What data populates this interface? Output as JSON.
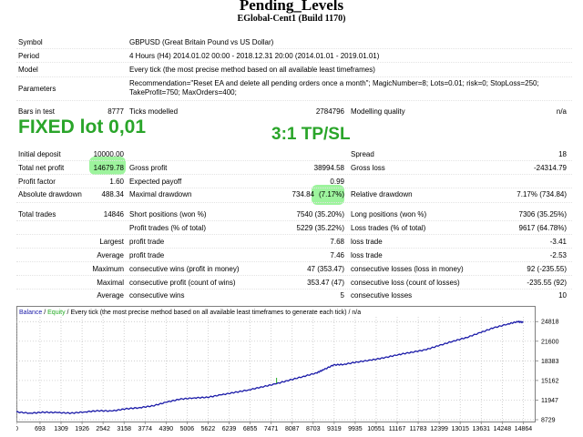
{
  "report": {
    "title": "Pending_Levels",
    "subtitle": "EGlobal-Cent1 (Build 1170)"
  },
  "overlay": {
    "fixed_lot": "FIXED lot 0,01",
    "tp_sl": "3:1 TP/SL"
  },
  "info": [
    {
      "key": "symbol",
      "label": "Symbol",
      "value": "GBPUSD (Great Britain Pound vs US Dollar)"
    },
    {
      "key": "period",
      "label": "Period",
      "value": "4 Hours (H4) 2014.01.02 00:00 - 2018.12.31 20:00 (2014.01.01 - 2019.01.01)"
    },
    {
      "key": "model",
      "label": "Model",
      "value": "Every tick (the most precise method based on all available least timeframes)"
    },
    {
      "key": "parameters",
      "label": "Parameters",
      "value": "Recommendation=\"Reset EA and delete all pending orders once a month\"; MagicNumber=8; Lots=0.01; risk=0; StopLoss=250;",
      "value2": "TakeProfit=750; MaxOrders=400;"
    }
  ],
  "bars": {
    "bars_label": "Bars in test",
    "bars_value": "8777",
    "ticks_label": "Ticks modelled",
    "ticks_value": "2784796",
    "quality_label": "Modelling quality",
    "quality_value": "n/a"
  },
  "stats": {
    "initial_deposit_label": "Initial deposit",
    "initial_deposit": "10000.00",
    "spread_label": "Spread",
    "spread": "18",
    "total_net_profit_label": "Total net profit",
    "total_net_profit": "14679.78",
    "gross_profit_label": "Gross profit",
    "gross_profit": "38994.58",
    "gross_loss_label": "Gross loss",
    "gross_loss": "-24314.79",
    "profit_factor_label": "Profit factor",
    "profit_factor": "1.60",
    "expected_payoff_label": "Expected payoff",
    "expected_payoff": "0.99",
    "absolute_drawdown_label": "Absolute drawdown",
    "absolute_drawdown": "488.34",
    "maximal_drawdown_label": "Maximal drawdown",
    "maximal_drawdown_a": "734.84",
    "maximal_drawdown_b": "(7.17%)",
    "relative_drawdown_label": "Relative drawdown",
    "relative_drawdown": "7.17% (734.84)",
    "total_trades_label": "Total trades",
    "total_trades": "14846",
    "short_label": "Short positions (won %)",
    "short": "7540 (35.20%)",
    "long_label": "Long positions (won %)",
    "long": "7306 (35.25%)",
    "profit_trades_label": "Profit trades (% of total)",
    "profit_trades": "5229 (35.22%)",
    "loss_trades_label": "Loss trades (% of total)",
    "loss_trades": "9617 (64.78%)",
    "largest_label": "Largest",
    "largest_profit_label": "profit trade",
    "largest_profit": "7.68",
    "largest_loss_label": "loss trade",
    "largest_loss": "-3.41",
    "average_label": "Average",
    "average_profit_label": "profit trade",
    "average_profit": "7.46",
    "average_loss_label": "loss trade",
    "average_loss": "-2.53",
    "maximum_label": "Maximum",
    "max_cons_wins_label": "consecutive wins (profit in money)",
    "max_cons_wins": "47 (353.47)",
    "max_cons_losses_label": "consecutive losses (loss in money)",
    "max_cons_losses": "92 (-235.55)",
    "maximal_label": "Maximal",
    "maximal_cons_profit_label": "consecutive profit (count of wins)",
    "maximal_cons_profit": "353.47 (47)",
    "maximal_cons_loss_label": "consecutive loss (count of losses)",
    "maximal_cons_loss": "-235.55 (92)",
    "average2_label": "Average",
    "avg_cons_wins_label": "consecutive wins",
    "avg_cons_wins": "5",
    "avg_cons_losses_label": "consecutive losses",
    "avg_cons_losses": "10"
  },
  "chart_data": {
    "type": "line",
    "legend_balance": "Balance",
    "legend_sep1": " / ",
    "legend_equity": "Equity",
    "legend_sep2": " / Every tick (the most precise method based on all available least timeframes to generate each tick)",
    "legend_sep3": " / n/a",
    "yticks": [
      "24818",
      "21600",
      "18383",
      "15162",
      "11947",
      "8729"
    ],
    "ytick_values": [
      24818,
      21600,
      18383,
      15162,
      11947,
      8729
    ],
    "xticks": [
      "0",
      "693",
      "1309",
      "1926",
      "2542",
      "3158",
      "3774",
      "4390",
      "5006",
      "5622",
      "6239",
      "6855",
      "7471",
      "8087",
      "8703",
      "9319",
      "9935",
      "10551",
      "11167",
      "11783",
      "12399",
      "13015",
      "13631",
      "14248",
      "14864"
    ],
    "xtick_values": [
      0,
      693,
      1309,
      1926,
      2542,
      3158,
      3774,
      4390,
      5006,
      5622,
      6239,
      6855,
      7471,
      8087,
      8703,
      9319,
      9935,
      10551,
      11167,
      11783,
      12399,
      13015,
      13631,
      14248,
      14864
    ],
    "xlim": [
      0,
      15200
    ],
    "ylim": [
      8729,
      25600
    ],
    "grid": true,
    "colors": {
      "balance": "#1a1aa8",
      "equity": "#22aa22",
      "axis": "#7f7f7f",
      "grid": "#bfbfbf"
    },
    "balance": [
      [
        0,
        10000
      ],
      [
        400,
        9800
      ],
      [
        800,
        9950
      ],
      [
        1200,
        9900
      ],
      [
        1600,
        9800
      ],
      [
        2000,
        10000
      ],
      [
        2400,
        10200
      ],
      [
        2800,
        10150
      ],
      [
        3200,
        10500
      ],
      [
        3600,
        10700
      ],
      [
        4000,
        11000
      ],
      [
        4400,
        11600
      ],
      [
        4800,
        12100
      ],
      [
        5200,
        12300
      ],
      [
        5600,
        12400
      ],
      [
        6000,
        12800
      ],
      [
        6400,
        13200
      ],
      [
        6800,
        13600
      ],
      [
        7200,
        14100
      ],
      [
        7600,
        14600
      ],
      [
        8000,
        15200
      ],
      [
        8400,
        15800
      ],
      [
        8800,
        16400
      ],
      [
        9000,
        16900
      ],
      [
        9300,
        17700
      ],
      [
        9600,
        17800
      ],
      [
        10000,
        18200
      ],
      [
        10400,
        18500
      ],
      [
        10800,
        18900
      ],
      [
        11200,
        19400
      ],
      [
        11600,
        19800
      ],
      [
        12000,
        20200
      ],
      [
        12400,
        20900
      ],
      [
        12800,
        21600
      ],
      [
        13200,
        22200
      ],
      [
        13600,
        23000
      ],
      [
        14000,
        23800
      ],
      [
        14400,
        24400
      ],
      [
        14700,
        24818
      ],
      [
        14864,
        24700
      ]
    ],
    "equity_spike": [
      [
        7630,
        14700
      ],
      [
        7630,
        15600
      ]
    ]
  }
}
